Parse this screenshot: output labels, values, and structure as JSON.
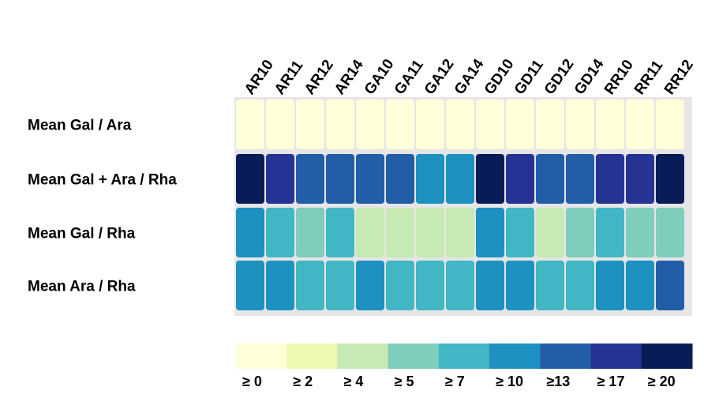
{
  "chart_data": {
    "type": "heatmap",
    "columns": [
      "AR10",
      "AR11",
      "AR12",
      "AR14",
      "GA10",
      "GA11",
      "GA12",
      "GA14",
      "GD10",
      "GD11",
      "GD12",
      "GD14",
      "RR10",
      "RR11",
      "RR12"
    ],
    "rows": [
      "Mean Gal / Ara",
      "Mean Gal + Ara / Rha",
      "Mean Gal / Rha",
      "Mean Ara / Rha"
    ],
    "values": [
      [
        0,
        0,
        0,
        0,
        0,
        0,
        0,
        0,
        0,
        0,
        0,
        0,
        0,
        0,
        0
      ],
      [
        20,
        17,
        13,
        13,
        13,
        13,
        10,
        10,
        20,
        17,
        13,
        13,
        17,
        17,
        20
      ],
      [
        10,
        7,
        5,
        7,
        4,
        4,
        4,
        4,
        10,
        7,
        4,
        5,
        7,
        5,
        5
      ],
      [
        10,
        10,
        7,
        7,
        10,
        7,
        7,
        7,
        10,
        10,
        7,
        7,
        10,
        10,
        13
      ]
    ],
    "legend": {
      "thresholds": [
        0,
        2,
        4,
        5,
        7,
        10,
        13,
        17,
        20
      ],
      "labels": [
        "≥ 0",
        "≥ 2",
        "≥ 4",
        "≥ 5",
        "≥ 7",
        "≥ 10",
        "≥13",
        "≥ 17",
        "≥ 20"
      ],
      "colors": [
        "#ffffd9",
        "#edf8b1",
        "#c7e9b4",
        "#7fcdbb",
        "#41b6c4",
        "#1d91c0",
        "#225ea8",
        "#253494",
        "#081d58"
      ],
      "placement": "bottom"
    }
  }
}
